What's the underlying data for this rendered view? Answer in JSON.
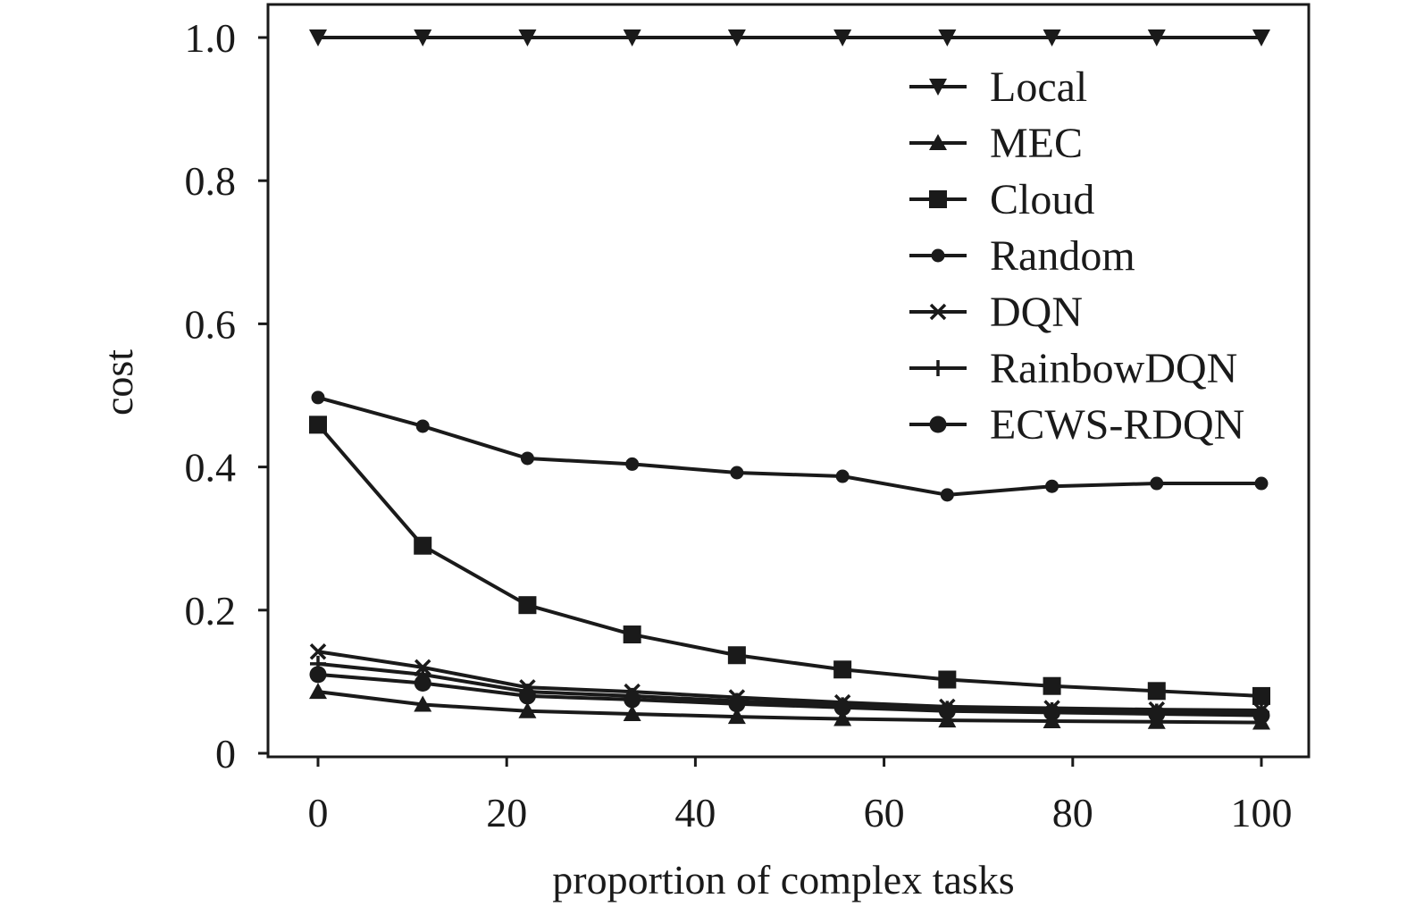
{
  "chart_data": {
    "type": "line",
    "xlabel": "proportion of complex tasks",
    "ylabel": "cost",
    "xlim": [
      -5,
      105
    ],
    "ylim": [
      0,
      1.0
    ],
    "xticks": [
      0,
      20,
      40,
      60,
      80,
      100
    ],
    "xtick_labels": [
      "0",
      "20",
      "40",
      "60",
      "80",
      "100"
    ],
    "yticks": [
      0,
      0.2,
      0.4,
      0.6,
      0.8,
      1.0
    ],
    "ytick_labels": [
      "0",
      "0.2",
      "0.4",
      "0.6",
      "0.8",
      "1.0"
    ],
    "x": [
      0,
      11.1,
      22.2,
      33.3,
      44.4,
      55.6,
      66.7,
      77.8,
      88.9,
      100
    ],
    "legend_position": "top-right",
    "grid": false,
    "line_color": "#1a1a1a",
    "series": [
      {
        "name": "Local",
        "marker": "triangle-down",
        "values": [
          1.0,
          1.0,
          1.0,
          1.0,
          1.0,
          1.0,
          1.0,
          1.0,
          1.0,
          1.0
        ]
      },
      {
        "name": "MEC",
        "marker": "triangle-up",
        "values": [
          0.086,
          0.068,
          0.059,
          0.055,
          0.051,
          0.048,
          0.046,
          0.045,
          0.044,
          0.043
        ]
      },
      {
        "name": "Cloud",
        "marker": "square",
        "values": [
          0.459,
          0.29,
          0.207,
          0.166,
          0.137,
          0.117,
          0.103,
          0.094,
          0.087,
          0.08
        ]
      },
      {
        "name": "Random",
        "marker": "small-circle",
        "values": [
          0.497,
          0.457,
          0.412,
          0.404,
          0.392,
          0.387,
          0.361,
          0.373,
          0.377,
          0.377
        ]
      },
      {
        "name": "DQN",
        "marker": "x",
        "values": [
          0.142,
          0.12,
          0.092,
          0.086,
          0.078,
          0.071,
          0.065,
          0.063,
          0.061,
          0.06
        ]
      },
      {
        "name": "RainbowDQN",
        "marker": "plus",
        "values": [
          0.125,
          0.11,
          0.086,
          0.08,
          0.073,
          0.067,
          0.062,
          0.06,
          0.058,
          0.057
        ]
      },
      {
        "name": "ECWS-RDQN",
        "marker": "circle",
        "values": [
          0.11,
          0.098,
          0.08,
          0.075,
          0.069,
          0.064,
          0.059,
          0.057,
          0.055,
          0.053
        ]
      }
    ]
  }
}
